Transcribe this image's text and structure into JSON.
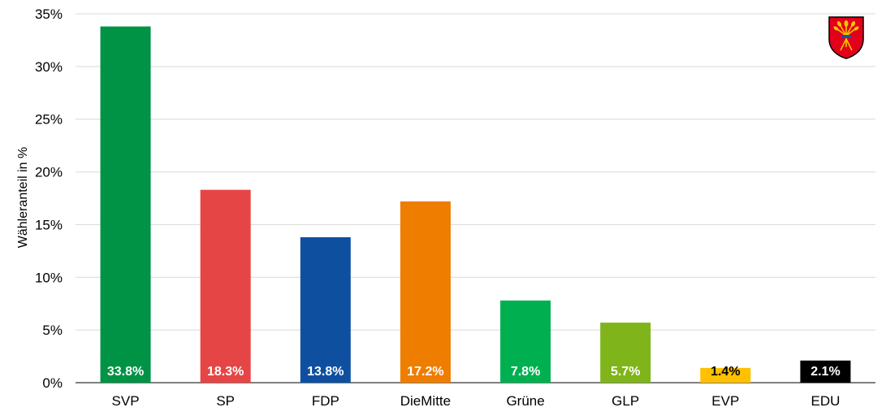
{
  "chart_data": {
    "type": "bar",
    "title": "",
    "xlabel": "",
    "ylabel": "Wähleranteil in %",
    "ylim": [
      0,
      35
    ],
    "yticks": [
      0,
      5,
      10,
      15,
      20,
      25,
      30,
      35
    ],
    "ytick_labels": [
      "0%",
      "5%",
      "10%",
      "15%",
      "20%",
      "25%",
      "30%",
      "35%"
    ],
    "grid": true,
    "legend": "none",
    "categories": [
      "SVP",
      "SP",
      "FDP",
      "DieMitte",
      "Grüne",
      "GLP",
      "EVP",
      "EDU"
    ],
    "values": [
      33.8,
      18.3,
      13.8,
      17.2,
      7.8,
      5.7,
      1.4,
      2.1
    ],
    "data_labels": [
      "33.8%",
      "18.3%",
      "13.8%",
      "17.2%",
      "7.8%",
      "5.7%",
      "1.4%",
      "2.1%"
    ],
    "colors": [
      "#009245",
      "#E64545",
      "#0F4FA0",
      "#EF7D00",
      "#00B050",
      "#7FB51A",
      "#FFC000",
      "#000000"
    ],
    "label_colors": [
      "#ffffff",
      "#ffffff",
      "#ffffff",
      "#ffffff",
      "#ffffff",
      "#ffffff",
      "#000000",
      "#ffffff"
    ]
  },
  "logo": {
    "name": "coat-of-arms-icon"
  }
}
